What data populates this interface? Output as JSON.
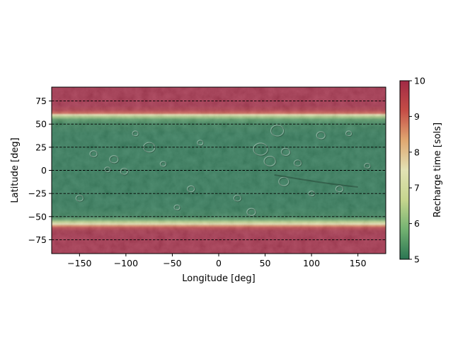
{
  "chart_data": {
    "type": "heatmap",
    "title": "",
    "xlabel": "Longitude [deg]",
    "ylabel": "Latitude [deg]",
    "xlim": [
      -180,
      180
    ],
    "ylim": [
      -90,
      90
    ],
    "x_ticks": [
      -150,
      -100,
      -50,
      0,
      50,
      100,
      150
    ],
    "x_tick_labels": [
      "−150",
      "−100",
      "−50",
      "0",
      "50",
      "100",
      "150"
    ],
    "y_ticks": [
      75,
      50,
      25,
      0,
      -25,
      -50,
      -75
    ],
    "y_tick_labels": [
      "75",
      "50",
      "25",
      "0",
      "−25",
      "−50",
      "−75"
    ],
    "dashed_latitude_lines": [
      75,
      50,
      25,
      0,
      -25,
      -50,
      -75
    ],
    "colorbar": {
      "label": "Recharge time [sols]",
      "range": [
        5,
        10
      ],
      "ticks": [
        5,
        6,
        7,
        8,
        9,
        10
      ],
      "tick_labels": [
        "5",
        "6",
        "7",
        "8",
        "9",
        "10"
      ],
      "colormap": "RdYlGn_r",
      "stops": [
        "#006837",
        "#66bd63",
        "#d9ef8b",
        "#ffffbf",
        "#fdae61",
        "#d73027",
        "#a50026"
      ]
    },
    "recharge_profile_by_latitude": {
      "latitude": [
        90,
        80,
        70,
        65,
        62,
        60,
        58,
        55,
        50,
        40,
        20,
        0,
        -20,
        -40,
        -50,
        -53,
        -56,
        -58,
        -60,
        -62,
        -65,
        -70,
        -80,
        -90
      ],
      "recharge_sols": [
        10,
        10,
        10,
        9.7,
        9.0,
        7.6,
        6.4,
        5.5,
        5.1,
        5.0,
        5.0,
        5.0,
        5.0,
        5.0,
        5.1,
        5.6,
        6.6,
        7.6,
        8.6,
        9.4,
        9.9,
        10,
        10,
        10
      ]
    },
    "background": "Mars shaded relief (hillshade)"
  }
}
